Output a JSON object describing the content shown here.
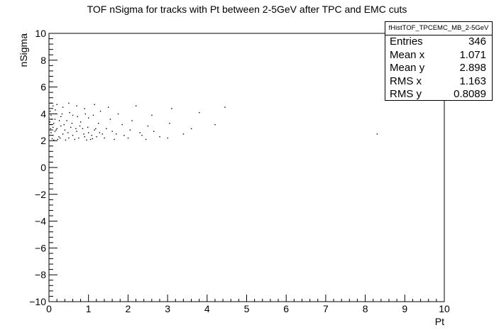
{
  "chart_data": {
    "type": "scatter",
    "title": "TOF nSigma for tracks with Pt between 2-5GeV after TPC and EMC cuts",
    "xlabel": "Pt",
    "ylabel": "nSigma",
    "xlim": [
      0,
      10
    ],
    "ylim": [
      -10,
      10
    ],
    "xticks": [
      0,
      1,
      2,
      3,
      4,
      5,
      6,
      7,
      8,
      9,
      10
    ],
    "yticks": [
      -10,
      -8,
      -6,
      -4,
      -2,
      0,
      2,
      4,
      6,
      8,
      10
    ],
    "stats": {
      "name": "fHistTOF_TPCEMC_MB_2-5GeV",
      "rows": [
        {
          "label": "Entries",
          "value": "346"
        },
        {
          "label": "Mean x",
          "value": "1.071"
        },
        {
          "label": "Mean y",
          "value": "2.898"
        },
        {
          "label": "RMS x",
          "value": "1.163"
        },
        {
          "label": "RMS y",
          "value": "0.8089"
        }
      ]
    },
    "points": [
      [
        0.05,
        4.8
      ],
      [
        0.1,
        4.6
      ],
      [
        0.2,
        4.7
      ],
      [
        0.35,
        4.5
      ],
      [
        0.5,
        4.8
      ],
      [
        0.7,
        4.6
      ],
      [
        0.9,
        4.4
      ],
      [
        1.15,
        4.7
      ],
      [
        1.3,
        4.2
      ],
      [
        1.5,
        4.5
      ],
      [
        1.75,
        4.0
      ],
      [
        2.2,
        4.6
      ],
      [
        2.6,
        3.9
      ],
      [
        3.1,
        4.4
      ],
      [
        3.8,
        4.1
      ],
      [
        4.45,
        4.5
      ],
      [
        0.05,
        3.9
      ],
      [
        0.15,
        3.6
      ],
      [
        0.3,
        3.8
      ],
      [
        0.45,
        3.5
      ],
      [
        0.6,
        3.9
      ],
      [
        0.8,
        3.4
      ],
      [
        1.0,
        3.7
      ],
      [
        1.25,
        3.3
      ],
      [
        1.55,
        3.6
      ],
      [
        1.85,
        3.2
      ],
      [
        2.1,
        3.5
      ],
      [
        2.5,
        3.1
      ],
      [
        3.05,
        3.3
      ],
      [
        3.6,
        2.9
      ],
      [
        4.2,
        3.2
      ],
      [
        0.05,
        3.2
      ],
      [
        0.1,
        3.0
      ],
      [
        0.2,
        2.9
      ],
      [
        0.3,
        3.1
      ],
      [
        0.4,
        2.8
      ],
      [
        0.55,
        3.0
      ],
      [
        0.7,
        2.7
      ],
      [
        0.85,
        2.9
      ],
      [
        1.0,
        2.6
      ],
      [
        1.15,
        2.8
      ],
      [
        1.35,
        2.5
      ],
      [
        1.6,
        2.7
      ],
      [
        1.9,
        2.4
      ],
      [
        2.3,
        2.6
      ],
      [
        2.8,
        2.3
      ],
      [
        3.4,
        2.5
      ],
      [
        0.05,
        2.6
      ],
      [
        0.1,
        2.4
      ],
      [
        0.15,
        2.7
      ],
      [
        0.25,
        2.3
      ],
      [
        0.35,
        2.5
      ],
      [
        0.5,
        2.2
      ],
      [
        0.6,
        2.4
      ],
      [
        0.75,
        2.2
      ],
      [
        0.9,
        2.3
      ],
      [
        1.05,
        2.1
      ],
      [
        1.2,
        2.3
      ],
      [
        1.4,
        2.2
      ],
      [
        1.65,
        2.1
      ],
      [
        2.0,
        2.2
      ],
      [
        2.45,
        2.1
      ],
      [
        3.0,
        2.2
      ],
      [
        8.3,
        2.5
      ],
      [
        0.08,
        2.15
      ],
      [
        0.12,
        2.05
      ],
      [
        0.22,
        2.1
      ],
      [
        0.28,
        2.2
      ],
      [
        0.42,
        2.05
      ],
      [
        0.65,
        2.1
      ],
      [
        0.95,
        2.05
      ],
      [
        1.1,
        2.15
      ],
      [
        0.02,
        3.4
      ],
      [
        0.04,
        2.9
      ],
      [
        0.06,
        3.6
      ],
      [
        0.12,
        3.3
      ],
      [
        0.18,
        2.8
      ],
      [
        0.26,
        3.5
      ],
      [
        0.38,
        3.2
      ],
      [
        0.48,
        2.6
      ],
      [
        0.58,
        3.3
      ],
      [
        0.68,
        2.9
      ],
      [
        0.78,
        3.1
      ],
      [
        0.88,
        2.5
      ],
      [
        0.98,
        3.0
      ],
      [
        1.08,
        2.4
      ],
      [
        1.18,
        2.9
      ],
      [
        1.28,
        2.6
      ],
      [
        1.45,
        2.9
      ],
      [
        1.7,
        2.5
      ],
      [
        2.05,
        2.8
      ],
      [
        2.35,
        2.4
      ],
      [
        2.65,
        2.7
      ],
      [
        0.03,
        4.2
      ],
      [
        0.16,
        4.3
      ],
      [
        0.33,
        4.0
      ],
      [
        0.52,
        4.1
      ],
      [
        0.72,
        3.8
      ],
      [
        0.92,
        4.0
      ],
      [
        1.12,
        3.9
      ]
    ]
  }
}
